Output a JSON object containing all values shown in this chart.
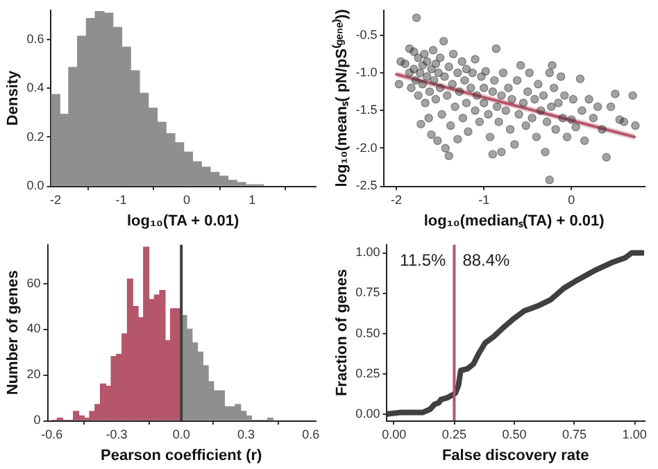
{
  "chart_data": [
    {
      "type": "histogram",
      "xlabel": "log₁₀(TA + 0.01)",
      "ylabel": "Density",
      "color": "#8f8f8f",
      "bins": [
        -2.07,
        -1.935,
        -1.8,
        -1.665,
        -1.53,
        -1.395,
        -1.26,
        -1.125,
        -0.99,
        -0.855,
        -0.72,
        -0.585,
        -0.45,
        -0.315,
        -0.18,
        -0.045,
        0.09,
        0.225,
        0.36,
        0.495,
        0.63,
        0.765,
        0.9,
        1.035,
        1.17
      ],
      "values": [
        0.375,
        0.294,
        0.486,
        0.614,
        0.686,
        0.715,
        0.708,
        0.65,
        0.569,
        0.472,
        0.38,
        0.319,
        0.261,
        0.214,
        0.177,
        0.139,
        0.099,
        0.077,
        0.056,
        0.04,
        0.023,
        0.014,
        0.005,
        0.005
      ],
      "xlim": [
        -2.07,
        1.96
      ],
      "ylim": [
        0,
        0.72
      ],
      "xticks": [
        -2,
        -1,
        0,
        1
      ],
      "yticks": [
        {
          "value": 0,
          "label": "0.0"
        },
        0.2,
        0.4,
        0.6
      ]
    },
    {
      "type": "scatter",
      "xlabel": "log₁₀(medianₛ(TA) + 0.01)",
      "ylabel": "log₁₀(meanₛ( pN/pS⁽ᵍᵉⁿᵉ⁾))",
      "xlim": [
        -2.14,
        0.83
      ],
      "ylim": [
        -2.5,
        -0.17
      ],
      "xticks": [
        -2,
        -1,
        0
      ],
      "yticks": [
        -0.5,
        {
          "value": -1,
          "label": "-1.0"
        },
        -1.5,
        {
          "value": -2,
          "label": "-2.0"
        },
        -2.5
      ],
      "series": [
        {
          "type": "scatter",
          "color": "#333333",
          "marker": "circle",
          "x": [
            -1.97,
            -1.95,
            -1.9,
            -1.85,
            -1.85,
            -1.83,
            -1.8,
            -1.8,
            -1.78,
            -1.77,
            -1.75,
            -1.75,
            -1.73,
            -1.72,
            -1.7,
            -1.7,
            -1.68,
            -1.67,
            -1.65,
            -1.65,
            -1.63,
            -1.62,
            -1.6,
            -1.6,
            -1.58,
            -1.57,
            -1.55,
            -1.55,
            -1.53,
            -1.52,
            -1.5,
            -1.5,
            -1.48,
            -1.46,
            -1.45,
            -1.44,
            -1.42,
            -1.4,
            -1.4,
            -1.38,
            -1.36,
            -1.35,
            -1.33,
            -1.3,
            -1.3,
            -1.28,
            -1.25,
            -1.24,
            -1.22,
            -1.2,
            -1.2,
            -1.18,
            -1.15,
            -1.13,
            -1.1,
            -1.1,
            -1.08,
            -1.05,
            -1.03,
            -1.0,
            -1.0,
            -0.98,
            -0.95,
            -0.93,
            -0.9,
            -0.9,
            -0.88,
            -0.86,
            -0.85,
            -0.83,
            -0.8,
            -0.8,
            -0.78,
            -0.75,
            -0.72,
            -0.7,
            -0.68,
            -0.65,
            -0.62,
            -0.6,
            -0.58,
            -0.55,
            -0.52,
            -0.5,
            -0.48,
            -0.45,
            -0.42,
            -0.4,
            -0.38,
            -0.35,
            -0.32,
            -0.3,
            -0.28,
            -0.25,
            -0.25,
            -0.23,
            -0.22,
            -0.2,
            -0.18,
            -0.15,
            -0.12,
            -0.1,
            -0.08,
            -0.05,
            0.0,
            0.02,
            0.05,
            0.1,
            0.12,
            0.15,
            0.2,
            0.25,
            0.3,
            0.35,
            0.4,
            0.45,
            0.5,
            0.55,
            0.6,
            0.7,
            0.73
          ],
          "values": [
            -1.15,
            -0.85,
            -0.88,
            -0.68,
            -1.0,
            -1.2,
            -0.72,
            -0.95,
            -1.1,
            -0.27,
            -0.8,
            -1.3,
            -1.0,
            -1.68,
            -0.9,
            -1.15,
            -0.75,
            -1.4,
            -1.05,
            -0.85,
            -1.6,
            -1.25,
            -0.95,
            -1.82,
            -0.7,
            -1.1,
            -1.35,
            -0.88,
            -1.9,
            -1.0,
            -1.2,
            -0.8,
            -1.55,
            -0.58,
            -1.05,
            -2.0,
            -1.3,
            -0.92,
            -2.1,
            -1.7,
            -1.15,
            -0.75,
            -1.45,
            -1.0,
            -1.88,
            -1.25,
            -0.85,
            -1.6,
            -1.1,
            -1.4,
            -0.95,
            -1.78,
            -1.2,
            -1.0,
            -1.5,
            -0.82,
            -1.3,
            -1.65,
            -1.05,
            -1.4,
            -1.2,
            -0.98,
            -1.55,
            -1.85,
            -1.25,
            -2.08,
            -1.1,
            -0.68,
            -1.45,
            -1.65,
            -1.3,
            -2.05,
            -1.0,
            -1.5,
            -1.2,
            -1.75,
            -1.35,
            -1.95,
            -1.1,
            -1.55,
            -0.9,
            -1.4,
            -1.7,
            -1.25,
            -1.0,
            -1.6,
            -1.35,
            -1.85,
            -1.15,
            -1.5,
            -1.3,
            -2.05,
            -1.65,
            -1.0,
            -2.42,
            -1.45,
            -0.9,
            -1.2,
            -1.75,
            -1.4,
            -1.05,
            -1.6,
            -1.3,
            -1.85,
            -1.62,
            -1.35,
            -1.72,
            -1.08,
            -1.5,
            -1.9,
            -1.35,
            -1.6,
            -1.45,
            -1.75,
            -2.12,
            -1.45,
            -1.28,
            -1.62,
            -1.65,
            -1.3,
            -1.7
          ]
        },
        {
          "type": "line",
          "color": "#b5566a",
          "marker": "none",
          "x": [
            -2,
            0.72
          ],
          "values": [
            -1.02,
            -1.85
          ],
          "lower": [
            -1.06,
            -1.89
          ],
          "upper": [
            -0.98,
            -1.81
          ]
        }
      ]
    },
    {
      "type": "histogram",
      "xlabel": "Pearson coefficient (r)",
      "ylabel": "Number of genes",
      "bins": [
        -0.6,
        -0.575,
        -0.55,
        -0.525,
        -0.5,
        -0.475,
        -0.45,
        -0.425,
        -0.4,
        -0.375,
        -0.35,
        -0.325,
        -0.3,
        -0.275,
        -0.25,
        -0.225,
        -0.2,
        -0.175,
        -0.15,
        -0.125,
        -0.1,
        -0.075,
        -0.05,
        -0.025,
        0,
        0.025,
        0.05,
        0.075,
        0.1,
        0.125,
        0.15,
        0.175,
        0.2,
        0.225,
        0.25,
        0.275,
        0.3,
        0.325,
        0.35,
        0.375,
        0.4,
        0.425
      ],
      "values": [
        0,
        1,
        0,
        0,
        4,
        2,
        1,
        4,
        7,
        16,
        15,
        28,
        29,
        38,
        62,
        50,
        45,
        76,
        53,
        55,
        57,
        35,
        49,
        49,
        46,
        40,
        34,
        30,
        24,
        17,
        13,
        13,
        6,
        6,
        7,
        4,
        2,
        0,
        0,
        0,
        1
      ],
      "colors": [
        "#b5566a",
        "#b5566a",
        "#b5566a",
        "#b5566a",
        "#b5566a",
        "#b5566a",
        "#b5566a",
        "#b5566a",
        "#b5566a",
        "#b5566a",
        "#b5566a",
        "#b5566a",
        "#b5566a",
        "#b5566a",
        "#b5566a",
        "#b5566a",
        "#b5566a",
        "#b5566a",
        "#b5566a",
        "#b5566a",
        "#b5566a",
        "#b5566a",
        "#b5566a",
        "#b5566a",
        "#8f8f8f",
        "#8f8f8f",
        "#8f8f8f",
        "#8f8f8f",
        "#8f8f8f",
        "#8f8f8f",
        "#8f8f8f",
        "#8f8f8f",
        "#8f8f8f",
        "#8f8f8f",
        "#8f8f8f",
        "#8f8f8f",
        "#8f8f8f",
        "#8f8f8f",
        "#8f8f8f",
        "#8f8f8f",
        "#8f8f8f"
      ],
      "xlim": [
        -0.62,
        0.62
      ],
      "ylim": [
        0,
        77
      ],
      "xticks": [
        -0.6,
        -0.3,
        {
          "value": 0,
          "label": "0.0"
        },
        0.3,
        0.6
      ],
      "yticks": [
        0,
        20,
        40,
        60
      ],
      "ref_lines": [
        {
          "axis": "x",
          "value": 0,
          "color": "#404040"
        }
      ]
    },
    {
      "type": "line",
      "xlabel": "False discovery rate",
      "ylabel": "Fraction of genes",
      "marker": "none",
      "color": "#404040",
      "x": [
        -0.03,
        0.03,
        0.12,
        0.15,
        0.168,
        0.186,
        0.195,
        0.22,
        0.245,
        0.255,
        0.268,
        0.277,
        0.305,
        0.33,
        0.35,
        0.378,
        0.414,
        0.45,
        0.496,
        0.542,
        0.597,
        0.652,
        0.706,
        0.761,
        0.834,
        0.907,
        0.962,
        0.989,
        1.035
      ],
      "values": [
        0,
        0.01,
        0.01,
        0.03,
        0.06,
        0.07,
        0.09,
        0.1,
        0.12,
        0.13,
        0.18,
        0.27,
        0.28,
        0.31,
        0.37,
        0.44,
        0.48,
        0.53,
        0.59,
        0.64,
        0.67,
        0.71,
        0.78,
        0.83,
        0.89,
        0.94,
        0.97,
        1,
        1
      ],
      "xlim": [
        -0.03,
        1.04
      ],
      "ylim": [
        -0.04,
        1.05
      ],
      "xticks": [
        {
          "value": 0,
          "label": "0.00"
        },
        0.25,
        {
          "value": 0.5,
          "label": "0.50"
        },
        0.75,
        {
          "value": 1,
          "label": "1.00"
        }
      ],
      "yticks": [
        {
          "value": 0,
          "label": "0.00"
        },
        0.25,
        {
          "value": 0.5,
          "label": "0.50"
        },
        0.75,
        {
          "value": 1,
          "label": "1.00"
        }
      ],
      "ref_lines": [
        {
          "axis": "x",
          "value": 0.25,
          "color": "#b5566a"
        }
      ],
      "annotations": [
        "11.5%",
        "88.4%"
      ]
    }
  ]
}
